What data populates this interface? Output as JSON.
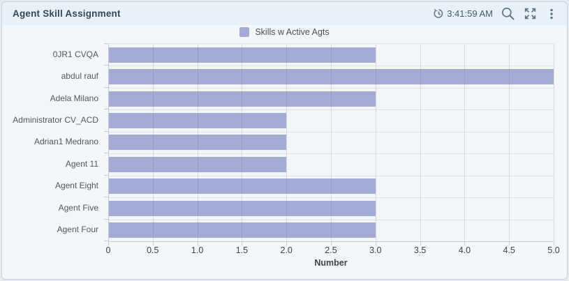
{
  "header": {
    "title": "Agent Skill Assignment",
    "refresh_time": "3:41:59 AM"
  },
  "icons": {
    "refresh_time": "clock-history-icon",
    "search": "magnifier-icon",
    "maximize": "expand-arrows-icon",
    "menu": "kebab-vertical-icon"
  },
  "colors": {
    "bar": "#a4acd5",
    "card_background": "#f3f7fa",
    "header_background": "#e9f1f8",
    "card_border": "#c7d3dc",
    "title_text": "#33475b",
    "icon": "#5e7284"
  },
  "chart_data": {
    "type": "bar",
    "orientation": "horizontal",
    "title": "Agent Skill Assignment",
    "legend": [
      "Skills w Active Agts"
    ],
    "legend_position": "top-center",
    "categories": [
      "0JR1 CVQA",
      "abdul rauf",
      "Adela Milano",
      "Administrator CV_ACD",
      "Adrian1 Medrano",
      "Agent 11",
      "Agent Eight",
      "Agent Five",
      "Agent Four"
    ],
    "series": [
      {
        "name": "Skills w Active Agts",
        "values": [
          3,
          5,
          3,
          2,
          2,
          2,
          3,
          3,
          3
        ]
      }
    ],
    "xlabel": "Number",
    "ylabel": "",
    "xlim": [
      0,
      5
    ],
    "xticks": [
      0,
      0.5,
      1,
      1.5,
      2,
      2.5,
      3,
      3.5,
      4,
      4.5,
      5
    ],
    "xtick_labels": [
      "0",
      "0.5",
      "1.0",
      "1.5",
      "2.0",
      "2.5",
      "3.0",
      "3.5",
      "4.0",
      "4.5",
      "5.0"
    ],
    "grid": true,
    "bar_color": "#a4acd5"
  }
}
